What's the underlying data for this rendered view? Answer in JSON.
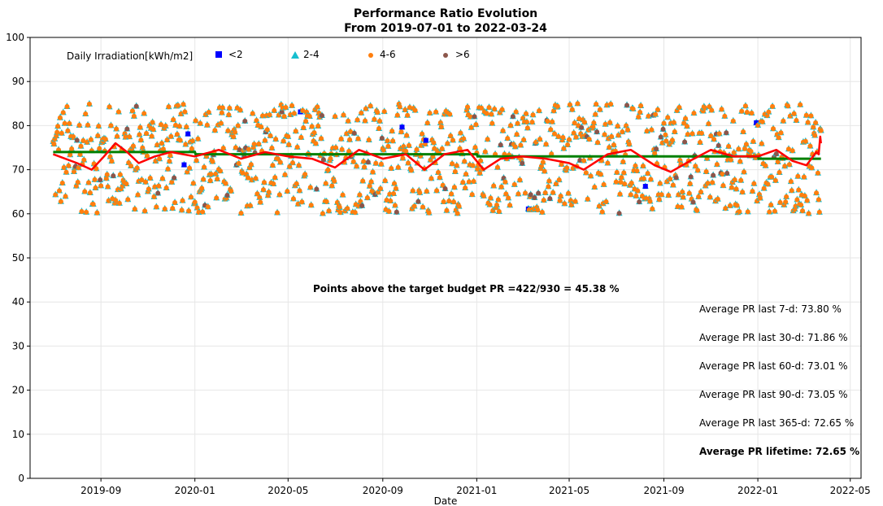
{
  "chart_data": {
    "type": "scatter",
    "title": "Performance Ratio Evolution",
    "subtitle": "From 2019-07-01 to 2022-03-24",
    "xlabel": "Date",
    "ylabel": "",
    "x_start": "2019-07-01",
    "x_end": "2022-03-24",
    "xlim": [
      "2019-06-01",
      "2022-05-15"
    ],
    "ylim": [
      0,
      100
    ],
    "grid": true,
    "x_ticks": [
      {
        "date": "2019-09-01",
        "label": "2019-09"
      },
      {
        "date": "2020-01-01",
        "label": "2020-01"
      },
      {
        "date": "2020-05-01",
        "label": "2020-05"
      },
      {
        "date": "2020-09-01",
        "label": "2020-09"
      },
      {
        "date": "2021-01-01",
        "label": "2021-01"
      },
      {
        "date": "2021-05-01",
        "label": "2021-05"
      },
      {
        "date": "2021-09-01",
        "label": "2021-09"
      },
      {
        "date": "2022-01-01",
        "label": "2022-01"
      },
      {
        "date": "2022-05-01",
        "label": "2022-05"
      }
    ],
    "y_ticks": [
      0,
      10,
      20,
      30,
      40,
      50,
      60,
      70,
      80,
      90,
      100
    ],
    "legend": {
      "title": "Daily Irradiation[kWh/m2]",
      "placement": "top-left",
      "entries": [
        {
          "label": "<2",
          "marker": "square",
          "color": "#0000ff"
        },
        {
          "label": "2-4",
          "marker": "triangle",
          "color": "#17becf"
        },
        {
          "label": "4-6",
          "marker": "circle",
          "color": "#ff7f0e"
        },
        {
          "label": ">6",
          "marker": "circle",
          "color": "#8c564b"
        }
      ]
    },
    "scatter_pr_range": [
      60,
      85
    ],
    "target_pr_line": {
      "color": "#008000",
      "points": [
        {
          "x": "2019-07-01",
          "y": 74.0
        },
        {
          "x": "2020-01-01",
          "y": 74.0
        },
        {
          "x": "2020-01-02",
          "y": 73.5
        },
        {
          "x": "2021-01-01",
          "y": 73.5
        },
        {
          "x": "2021-01-02",
          "y": 73.0
        },
        {
          "x": "2022-01-01",
          "y": 73.0
        },
        {
          "x": "2022-01-02",
          "y": 72.5
        },
        {
          "x": "2022-03-24",
          "y": 72.5
        }
      ]
    },
    "rolling_pr_line": {
      "color": "#ff0000",
      "points": [
        {
          "x": "2019-07-01",
          "y": 73.5
        },
        {
          "x": "2019-08-01",
          "y": 71.5
        },
        {
          "x": "2019-08-20",
          "y": 70.0
        },
        {
          "x": "2019-09-05",
          "y": 73.0
        },
        {
          "x": "2019-09-20",
          "y": 76.0
        },
        {
          "x": "2019-10-05",
          "y": 74.0
        },
        {
          "x": "2019-10-20",
          "y": 71.5
        },
        {
          "x": "2019-11-10",
          "y": 73.0
        },
        {
          "x": "2019-12-01",
          "y": 74.0
        },
        {
          "x": "2020-01-01",
          "y": 73.0
        },
        {
          "x": "2020-02-01",
          "y": 74.5
        },
        {
          "x": "2020-03-01",
          "y": 72.5
        },
        {
          "x": "2020-04-01",
          "y": 74.0
        },
        {
          "x": "2020-05-01",
          "y": 73.0
        },
        {
          "x": "2020-06-01",
          "y": 72.5
        },
        {
          "x": "2020-07-01",
          "y": 70.5
        },
        {
          "x": "2020-08-01",
          "y": 74.5
        },
        {
          "x": "2020-09-01",
          "y": 72.5
        },
        {
          "x": "2020-10-01",
          "y": 73.5
        },
        {
          "x": "2020-10-25",
          "y": 70.0
        },
        {
          "x": "2020-11-20",
          "y": 73.5
        },
        {
          "x": "2020-12-20",
          "y": 74.5
        },
        {
          "x": "2021-01-10",
          "y": 70.0
        },
        {
          "x": "2021-02-01",
          "y": 72.5
        },
        {
          "x": "2021-03-01",
          "y": 73.0
        },
        {
          "x": "2021-04-01",
          "y": 72.5
        },
        {
          "x": "2021-05-01",
          "y": 71.5
        },
        {
          "x": "2021-05-20",
          "y": 70.0
        },
        {
          "x": "2021-06-20",
          "y": 73.5
        },
        {
          "x": "2021-07-20",
          "y": 74.5
        },
        {
          "x": "2021-08-20",
          "y": 71.0
        },
        {
          "x": "2021-09-10",
          "y": 69.5
        },
        {
          "x": "2021-10-10",
          "y": 72.5
        },
        {
          "x": "2021-11-01",
          "y": 74.5
        },
        {
          "x": "2021-12-01",
          "y": 73.0
        },
        {
          "x": "2022-01-01",
          "y": 73.0
        },
        {
          "x": "2022-01-25",
          "y": 74.5
        },
        {
          "x": "2022-02-15",
          "y": 72.0
        },
        {
          "x": "2022-03-05",
          "y": 71.0
        },
        {
          "x": "2022-03-18",
          "y": 74.0
        },
        {
          "x": "2022-03-21",
          "y": 73.5
        },
        {
          "x": "2022-03-23",
          "y": 77.5
        },
        {
          "x": "2022-03-24",
          "y": 76.0
        }
      ]
    },
    "annotations": {
      "points_above": "Points above the target budget PR =422/930 = 45.38 %",
      "avg_7d": "Average PR last 7-d: 73.80 %",
      "avg_30d": "Average PR last 30-d: 71.86 %",
      "avg_60d": "Average PR last 60-d: 73.01 %",
      "avg_90d": "Average PR last 90-d: 73.05 %",
      "avg_365d": "Average PR last 365-d: 72.65 %",
      "avg_lifetime": "Average PR lifetime: 72.65 %"
    }
  }
}
